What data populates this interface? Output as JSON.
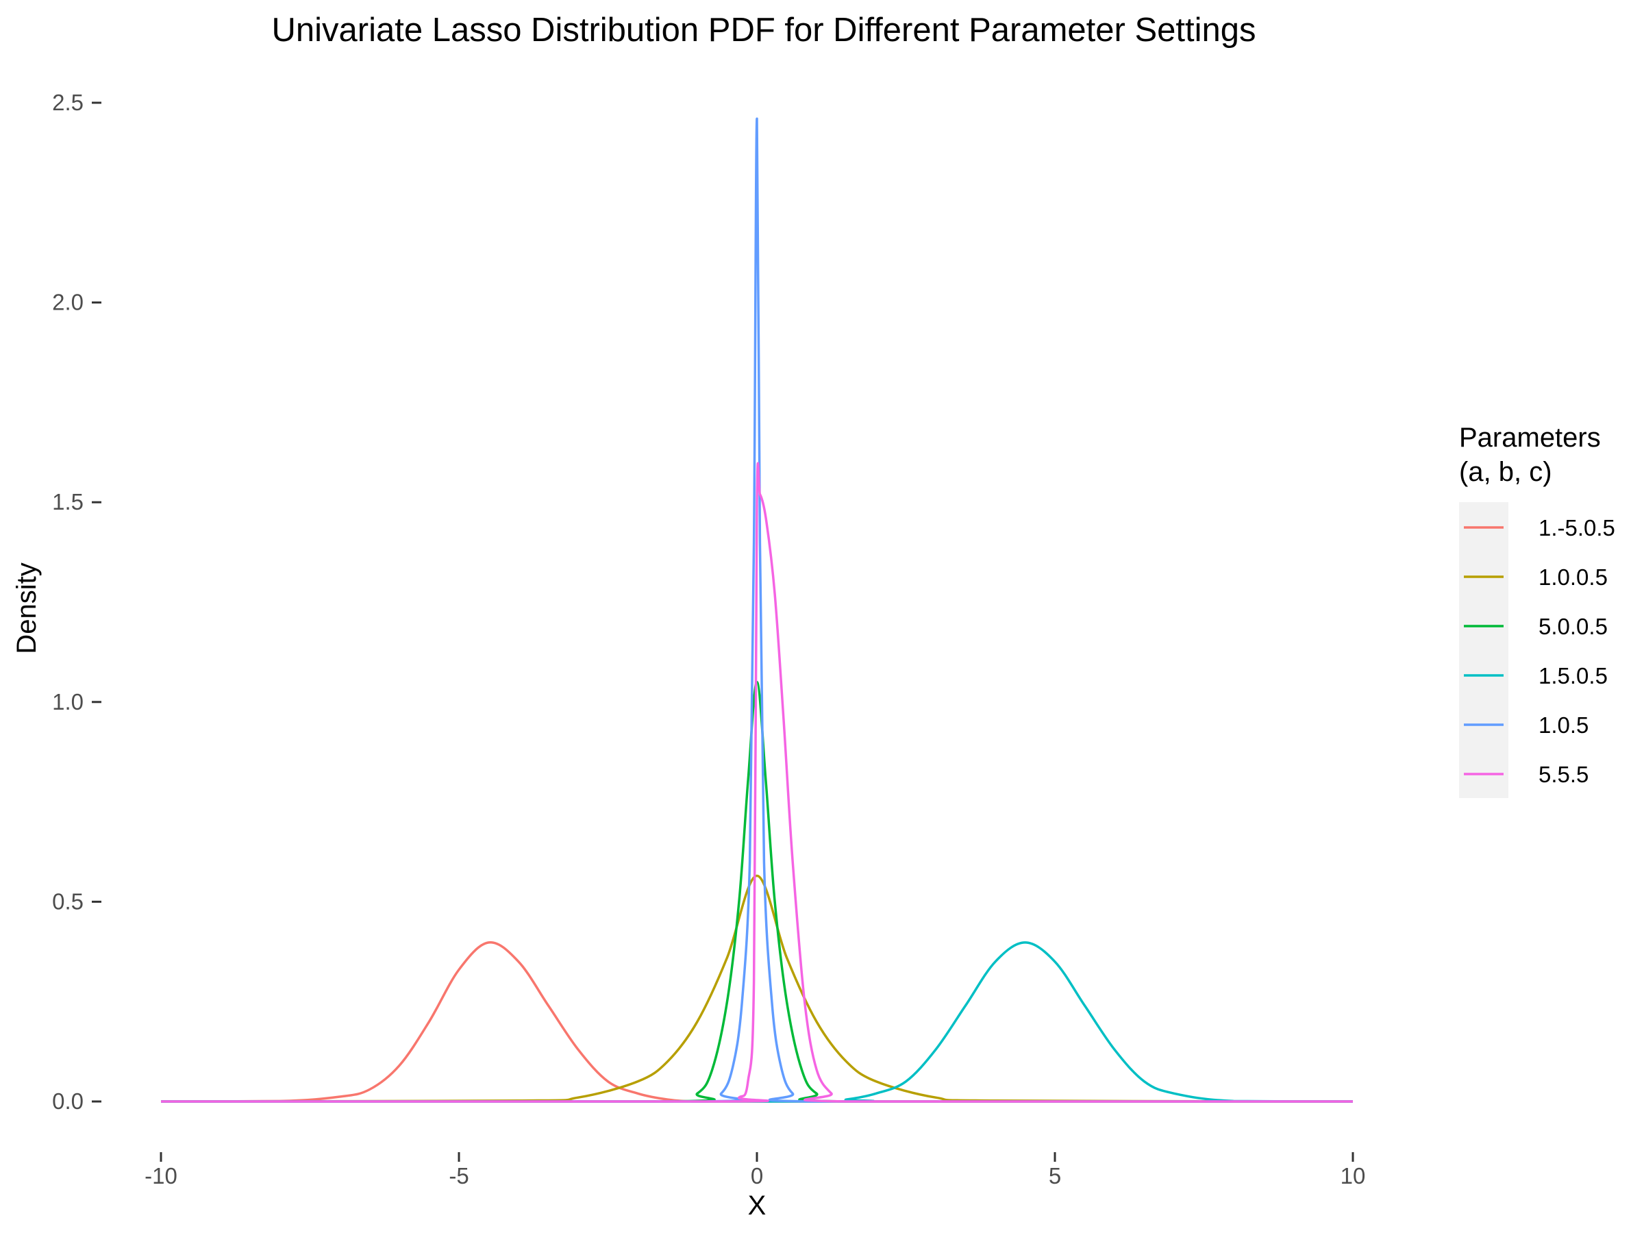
{
  "chart_data": {
    "type": "line",
    "title": "Univariate Lasso Distribution PDF for Different Parameter Settings",
    "xlabel": "X",
    "ylabel": "Density",
    "xlim": [
      -10,
      10
    ],
    "ylim": [
      0,
      2.5
    ],
    "x_ticks": [
      -10,
      -5,
      0,
      5,
      10
    ],
    "x_tick_labels": [
      "-10",
      "-5",
      "0",
      "5",
      "10"
    ],
    "y_ticks": [
      0,
      0.5,
      1,
      1.5,
      2,
      2.5
    ],
    "y_tick_labels": [
      "0.0",
      "0.5",
      "1.0",
      "1.5",
      "2.0",
      "2.5"
    ],
    "grid": false,
    "legend": {
      "title_line1": "Parameters",
      "title_line2": "(a, b, c)",
      "placement": "right"
    },
    "series": [
      {
        "name": "1.-5.0.5",
        "color": "#F8766D",
        "x": [
          -10,
          -8,
          -7,
          -6.5,
          -6,
          -5.5,
          -5,
          -4.5,
          -4,
          -3.5,
          -3,
          -2.5,
          -2,
          -1.5,
          -1,
          0,
          10
        ],
        "y": [
          0,
          0.001,
          0.012,
          0.03,
          0.09,
          0.2,
          0.33,
          0.398,
          0.35,
          0.24,
          0.13,
          0.05,
          0.02,
          0.005,
          0,
          0,
          0
        ]
      },
      {
        "name": "1.0.0.5",
        "color": "#B79F00",
        "x": [
          -10,
          -4,
          -3,
          -2,
          -1.5,
          -1,
          -0.5,
          0,
          0.5,
          1,
          1.5,
          2,
          3,
          4,
          10
        ],
        "y": [
          0,
          0.002,
          0.01,
          0.05,
          0.1,
          0.2,
          0.36,
          0.565,
          0.36,
          0.2,
          0.1,
          0.05,
          0.01,
          0.002,
          0
        ]
      },
      {
        "name": "5.0.0.5",
        "color": "#00BA38",
        "x": [
          -10,
          -1.5,
          -1,
          -0.75,
          -0.5,
          -0.3,
          -0.15,
          0,
          0.15,
          0.3,
          0.5,
          0.75,
          1,
          1.5,
          10
        ],
        "y": [
          0,
          0,
          0.02,
          0.08,
          0.25,
          0.5,
          0.8,
          1.05,
          0.8,
          0.5,
          0.25,
          0.08,
          0.02,
          0,
          0
        ]
      },
      {
        "name": "1.5.0.5",
        "color": "#00BFC4",
        "x": [
          -10,
          1,
          1.5,
          2,
          2.5,
          3,
          3.5,
          4,
          4.5,
          5,
          5.5,
          6,
          6.5,
          7,
          8,
          10
        ],
        "y": [
          0,
          0,
          0.005,
          0.02,
          0.05,
          0.13,
          0.24,
          0.35,
          0.398,
          0.35,
          0.24,
          0.13,
          0.05,
          0.02,
          0.001,
          0
        ]
      },
      {
        "name": "1.0.5",
        "color": "#619CFF",
        "x": [
          -10,
          -1,
          -0.6,
          -0.4,
          -0.25,
          -0.12,
          -0.05,
          0,
          0.05,
          0.12,
          0.25,
          0.4,
          0.6,
          1,
          10
        ],
        "y": [
          0,
          0,
          0.02,
          0.09,
          0.25,
          0.6,
          1.4,
          2.46,
          1.4,
          0.6,
          0.25,
          0.09,
          0.02,
          0,
          0
        ]
      },
      {
        "name": "5.5.5",
        "color": "#F564E3",
        "x": [
          -10,
          -0.6,
          -0.3,
          -0.15,
          -0.05,
          0,
          0.05,
          0.15,
          0.3,
          0.45,
          0.6,
          0.8,
          1,
          1.25,
          1.5,
          10
        ],
        "y": [
          0,
          0,
          0.01,
          0.05,
          0.3,
          1.5,
          1.52,
          1.46,
          1.27,
          0.95,
          0.6,
          0.25,
          0.08,
          0.02,
          0,
          0
        ]
      }
    ]
  }
}
